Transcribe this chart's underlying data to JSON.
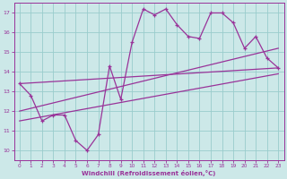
{
  "background_color": "#cce8e8",
  "grid_color": "#99cccc",
  "line_color": "#993399",
  "xlim": [
    -0.5,
    23.5
  ],
  "ylim": [
    9.5,
    17.5
  ],
  "yticks": [
    10,
    11,
    12,
    13,
    14,
    15,
    16,
    17
  ],
  "xticks": [
    0,
    1,
    2,
    3,
    4,
    5,
    6,
    7,
    8,
    9,
    10,
    11,
    12,
    13,
    14,
    15,
    16,
    17,
    18,
    19,
    20,
    21,
    22,
    23
  ],
  "xlabel": "Windchill (Refroidissement éolien,°C)",
  "series1_x": [
    0,
    1,
    2,
    3,
    4,
    5,
    6,
    7,
    8,
    9,
    10,
    11,
    12,
    13,
    14,
    15,
    16,
    17,
    18,
    19,
    20,
    21,
    22,
    23
  ],
  "series1_y": [
    13.4,
    12.8,
    11.5,
    11.8,
    11.8,
    10.5,
    10.0,
    10.8,
    14.3,
    12.6,
    15.5,
    17.2,
    16.9,
    17.2,
    16.4,
    15.8,
    15.7,
    17.0,
    17.0,
    16.5,
    15.2,
    15.8,
    14.7,
    14.2
  ],
  "series2_x": [
    0,
    23
  ],
  "series2_y": [
    13.4,
    14.2
  ],
  "series3_x": [
    0,
    23
  ],
  "series3_y": [
    12.0,
    15.2
  ],
  "series4_x": [
    0,
    23
  ],
  "series4_y": [
    11.5,
    13.9
  ]
}
